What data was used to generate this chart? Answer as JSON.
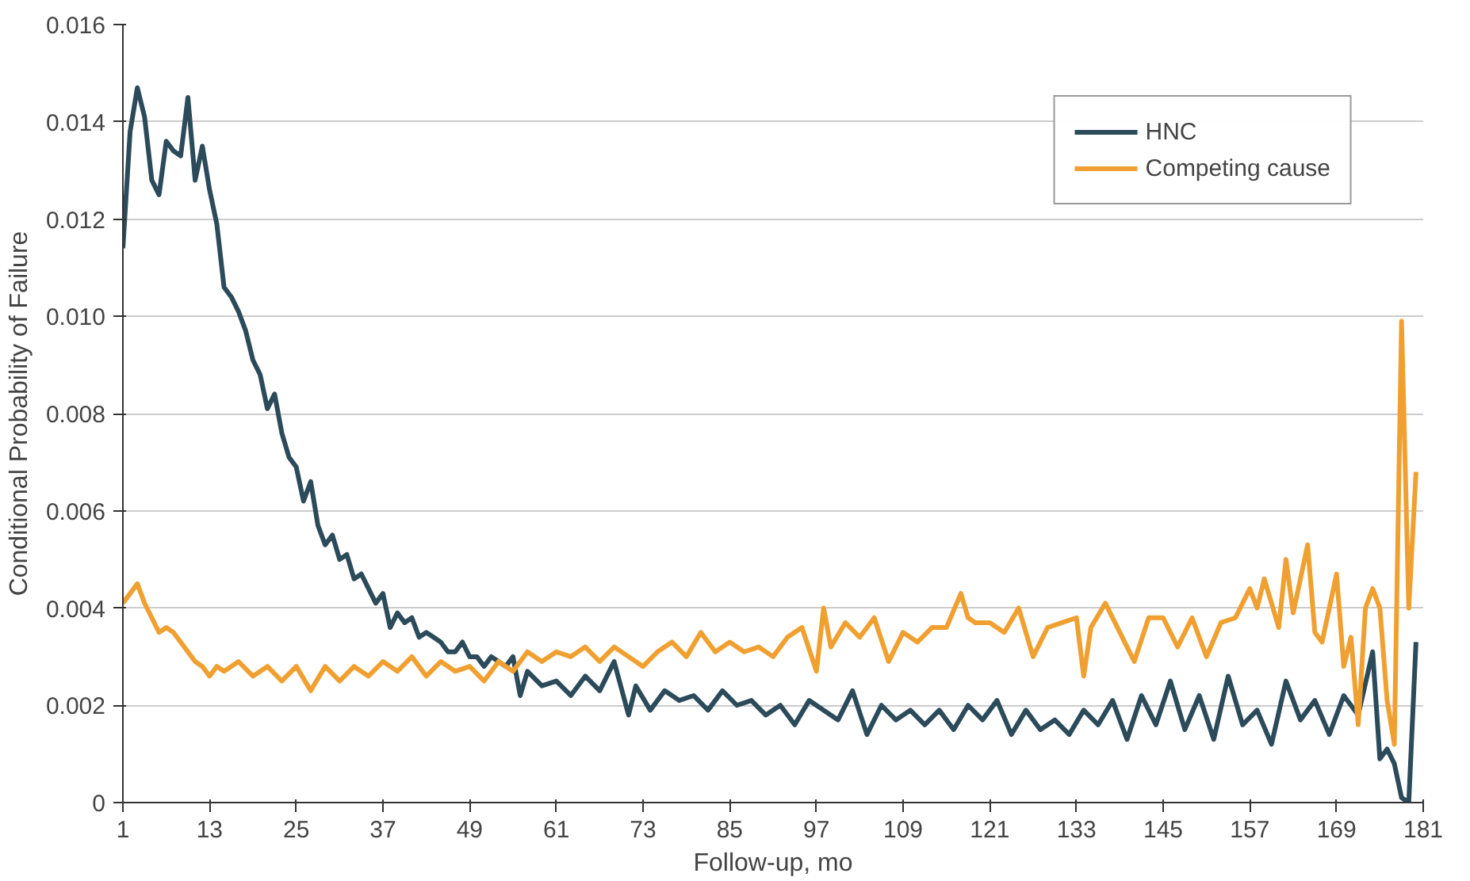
{
  "chart_data": {
    "type": "line",
    "xlabel": "Follow-up, mo",
    "ylabel": "Conditional Probability of Failure",
    "xlim": [
      1,
      181
    ],
    "xticks": [
      1,
      13,
      25,
      37,
      49,
      61,
      73,
      85,
      97,
      109,
      121,
      133,
      145,
      157,
      169,
      181
    ],
    "ylim": [
      0,
      0.016
    ],
    "yticks": [
      0,
      0.002,
      0.004,
      0.006,
      0.008,
      {
        "value": 0.01,
        "label": "0.010"
      },
      0.012,
      0.014,
      0.016
    ],
    "grid": "y",
    "legend": "top right",
    "line_style": "solid",
    "marker": "none",
    "series": [
      {
        "name": "HNC",
        "color": "#2b4a5a",
        "x": [
          1,
          2,
          3,
          4,
          5,
          6,
          7,
          8,
          9,
          10,
          11,
          12,
          13,
          14,
          15,
          16,
          17,
          18,
          19,
          20,
          21,
          22,
          23,
          24,
          25,
          26,
          27,
          28,
          29,
          30,
          31,
          32,
          33,
          34,
          35,
          36,
          37,
          38,
          39,
          40,
          41,
          42,
          43,
          44,
          45,
          46,
          47,
          48,
          49,
          50,
          51,
          52,
          53,
          54,
          55,
          56,
          57,
          59,
          61,
          63,
          65,
          67,
          69,
          71,
          72,
          74,
          76,
          78,
          80,
          82,
          84,
          86,
          88,
          90,
          92,
          94,
          96,
          98,
          100,
          102,
          104,
          106,
          108,
          110,
          112,
          114,
          116,
          118,
          120,
          122,
          124,
          126,
          128,
          130,
          132,
          134,
          136,
          138,
          140,
          142,
          144,
          146,
          148,
          150,
          152,
          154,
          156,
          158,
          160,
          162,
          164,
          166,
          168,
          170,
          172,
          174,
          175,
          176,
          177,
          178,
          179,
          180
        ],
        "values": [
          0.0114,
          0.0138,
          0.0147,
          0.0141,
          0.0128,
          0.0125,
          0.0136,
          0.0134,
          0.0133,
          0.0145,
          0.0128,
          0.0135,
          0.0126,
          0.0119,
          0.0106,
          0.0104,
          0.0101,
          0.0097,
          0.0091,
          0.0088,
          0.0081,
          0.0084,
          0.0076,
          0.0071,
          0.0069,
          0.0062,
          0.0066,
          0.0057,
          0.0053,
          0.0055,
          0.005,
          0.0051,
          0.0046,
          0.0047,
          0.0044,
          0.0041,
          0.0043,
          0.0036,
          0.0039,
          0.0037,
          0.0038,
          0.0034,
          0.0035,
          0.0034,
          0.0033,
          0.0031,
          0.0031,
          0.0033,
          0.003,
          0.003,
          0.0028,
          0.003,
          0.0029,
          0.0028,
          0.003,
          0.0022,
          0.0027,
          0.0024,
          0.0025,
          0.0022,
          0.0026,
          0.0023,
          0.0029,
          0.0018,
          0.0024,
          0.0019,
          0.0023,
          0.0021,
          0.0022,
          0.0019,
          0.0023,
          0.002,
          0.0021,
          0.0018,
          0.002,
          0.0016,
          0.0021,
          0.0019,
          0.0017,
          0.0023,
          0.0014,
          0.002,
          0.0017,
          0.0019,
          0.0016,
          0.0019,
          0.0015,
          0.002,
          0.0017,
          0.0021,
          0.0014,
          0.0019,
          0.0015,
          0.0017,
          0.0014,
          0.0019,
          0.0016,
          0.0021,
          0.0013,
          0.0022,
          0.0016,
          0.0025,
          0.0015,
          0.0022,
          0.0013,
          0.0026,
          0.0016,
          0.0019,
          0.0012,
          0.0025,
          0.0017,
          0.0021,
          0.0014,
          0.0022,
          0.0018,
          0.0031,
          0.0009,
          0.0011,
          0.0008,
          0.0001,
          0.0,
          0.0033
        ]
      },
      {
        "name": "Competing cause",
        "color": "#f0a030",
        "x": [
          1,
          2,
          3,
          4,
          5,
          6,
          7,
          8,
          9,
          10,
          11,
          12,
          13,
          14,
          15,
          16,
          17,
          19,
          21,
          23,
          25,
          27,
          29,
          31,
          33,
          35,
          37,
          39,
          41,
          43,
          45,
          47,
          49,
          51,
          53,
          55,
          57,
          59,
          61,
          63,
          65,
          67,
          69,
          71,
          73,
          75,
          77,
          79,
          81,
          83,
          85,
          87,
          89,
          91,
          93,
          95,
          97,
          98,
          99,
          101,
          103,
          105,
          107,
          109,
          111,
          113,
          115,
          117,
          118,
          119,
          121,
          123,
          125,
          127,
          129,
          131,
          133,
          134,
          135,
          137,
          139,
          141,
          143,
          145,
          147,
          149,
          151,
          153,
          155,
          157,
          158,
          159,
          161,
          162,
          163,
          165,
          166,
          167,
          169,
          170,
          171,
          172,
          173,
          174,
          175,
          176,
          177,
          178,
          179,
          180
        ],
        "values": [
          0.0041,
          0.0043,
          0.0045,
          0.0041,
          0.0038,
          0.0035,
          0.0036,
          0.0035,
          0.0033,
          0.0031,
          0.0029,
          0.0028,
          0.0026,
          0.0028,
          0.0027,
          0.0028,
          0.0029,
          0.0026,
          0.0028,
          0.0025,
          0.0028,
          0.0023,
          0.0028,
          0.0025,
          0.0028,
          0.0026,
          0.0029,
          0.0027,
          0.003,
          0.0026,
          0.0029,
          0.0027,
          0.0028,
          0.0025,
          0.0029,
          0.0027,
          0.0031,
          0.0029,
          0.0031,
          0.003,
          0.0032,
          0.0029,
          0.0032,
          0.003,
          0.0028,
          0.0031,
          0.0033,
          0.003,
          0.0035,
          0.0031,
          0.0033,
          0.0031,
          0.0032,
          0.003,
          0.0034,
          0.0036,
          0.0027,
          0.004,
          0.0032,
          0.0037,
          0.0034,
          0.0038,
          0.0029,
          0.0035,
          0.0033,
          0.0036,
          0.0036,
          0.0043,
          0.0038,
          0.0037,
          0.0037,
          0.0035,
          0.004,
          0.003,
          0.0036,
          0.0037,
          0.0038,
          0.0026,
          0.0036,
          0.0041,
          0.0035,
          0.0029,
          0.0038,
          0.0038,
          0.0032,
          0.0038,
          0.003,
          0.0037,
          0.0038,
          0.0044,
          0.004,
          0.0046,
          0.0036,
          0.005,
          0.0039,
          0.0053,
          0.0035,
          0.0033,
          0.0047,
          0.0028,
          0.0034,
          0.0016,
          0.004,
          0.0044,
          0.004,
          0.0021,
          0.0012,
          0.0099,
          0.004,
          0.0068
        ]
      }
    ]
  }
}
